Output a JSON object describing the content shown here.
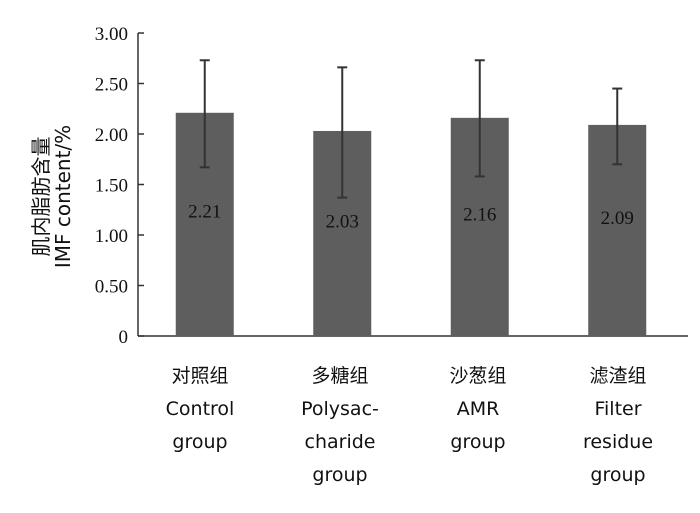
{
  "chart_data": {
    "type": "bar",
    "title": "",
    "ylabel_lines": [
      "肌内脂肪含量",
      "IMF content/%"
    ],
    "xlabel": "",
    "ylim": [
      0,
      3.0
    ],
    "yticks": [
      "0",
      "0.50",
      "1.00",
      "1.50",
      "2.00",
      "2.50",
      "3.00"
    ],
    "ytick_values": [
      0,
      0.5,
      1.0,
      1.5,
      2.0,
      2.5,
      3.0
    ],
    "categories": [
      [
        "对照组",
        "Control",
        "group"
      ],
      [
        "多糖组",
        "Polysac-",
        "charide",
        "group"
      ],
      [
        "沙葱组",
        "AMR",
        "group"
      ],
      [
        "滤渣组",
        "Filter",
        "residue",
        "group"
      ]
    ],
    "values": [
      2.21,
      2.03,
      2.16,
      2.09
    ],
    "value_labels": [
      "2.21",
      "2.03",
      "2.16",
      "2.09"
    ],
    "error_upper": [
      2.73,
      2.66,
      2.73,
      2.45
    ],
    "error_lower": [
      1.67,
      1.37,
      1.58,
      1.7
    ],
    "colors": {
      "bar": "#5e5e5e",
      "axis": "#333333",
      "error": "#333333"
    }
  }
}
